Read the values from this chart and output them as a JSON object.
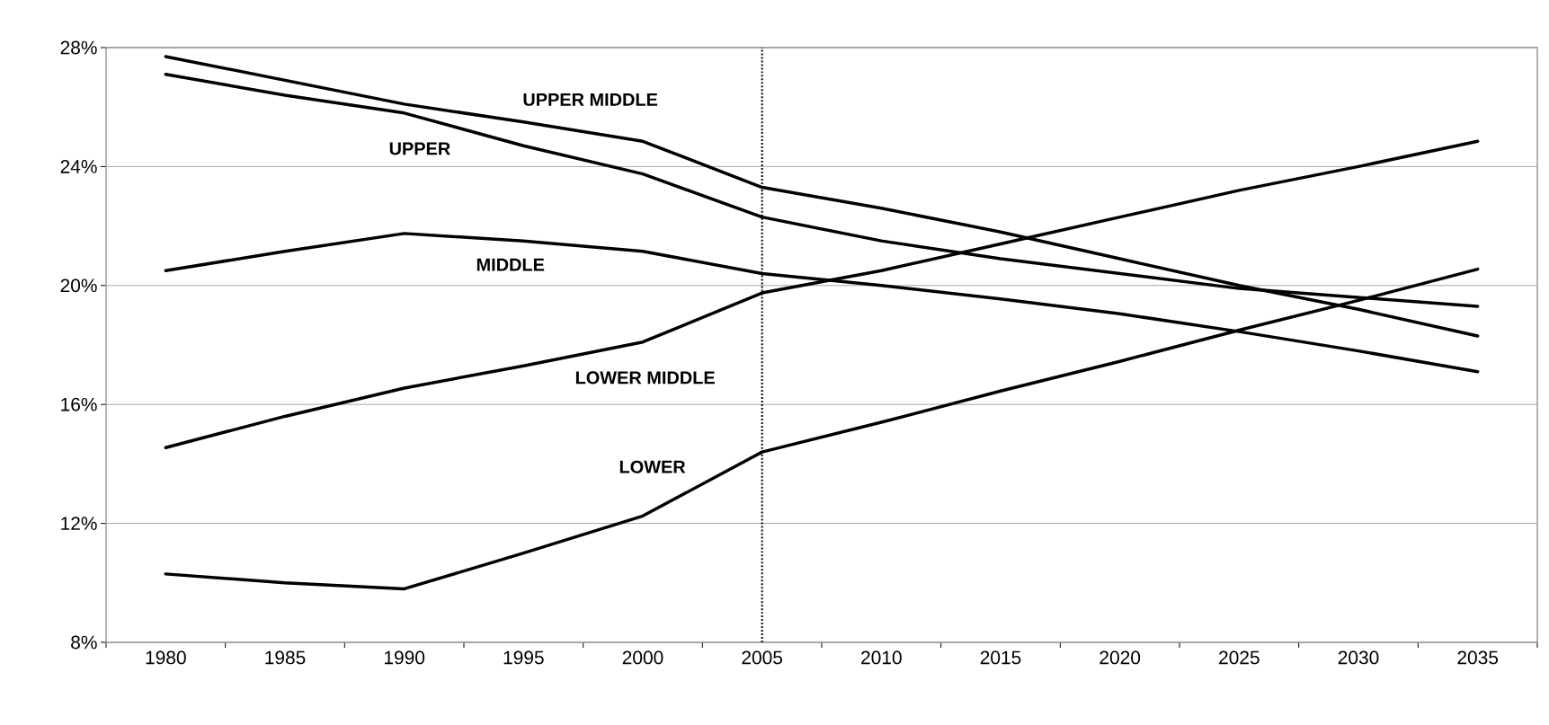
{
  "chart_data": {
    "type": "line",
    "categories": [
      "1980",
      "1985",
      "1990",
      "1995",
      "2000",
      "2005",
      "2010",
      "2015",
      "2020",
      "2025",
      "2030",
      "2035"
    ],
    "series": [
      {
        "name": "UPPER MIDDLE",
        "color": "#000000",
        "values": [
          27.7,
          26.9,
          26.1,
          25.5,
          24.85,
          23.3,
          22.6,
          21.8,
          20.9,
          20.0,
          19.2,
          18.3
        ]
      },
      {
        "name": "UPPER",
        "color": "#000000",
        "values": [
          27.1,
          26.4,
          25.8,
          24.7,
          23.75,
          22.3,
          21.5,
          20.9,
          20.4,
          19.9,
          19.6,
          19.3
        ]
      },
      {
        "name": "MIDDLE",
        "color": "#000000",
        "values": [
          20.5,
          21.15,
          21.75,
          21.5,
          21.15,
          20.4,
          20.0,
          19.55,
          19.05,
          18.45,
          17.8,
          17.1
        ]
      },
      {
        "name": "LOWER MIDDLE",
        "color": "#000000",
        "values": [
          14.55,
          15.6,
          16.55,
          17.3,
          18.1,
          19.75,
          20.5,
          21.4,
          22.3,
          23.2,
          24.0,
          24.85
        ]
      },
      {
        "name": "LOWER",
        "color": "#000000",
        "values": [
          10.3,
          10.0,
          9.8,
          11.0,
          12.25,
          14.4,
          15.4,
          16.45,
          17.45,
          18.5,
          19.5,
          20.55
        ]
      }
    ],
    "ylim": [
      8,
      28
    ],
    "yticks": [
      {
        "value": 8,
        "label": "8%"
      },
      {
        "value": 12,
        "label": "12%"
      },
      {
        "value": 16,
        "label": "16%"
      },
      {
        "value": 20,
        "label": "20%"
      },
      {
        "value": 24,
        "label": "24%"
      },
      {
        "value": 28,
        "label": "28%"
      }
    ],
    "grid": "y",
    "line_style": "solid",
    "marker": "none",
    "ref_lines": [
      {
        "axis": "x",
        "value": "2005",
        "line_style": "dotted",
        "color": "#000000"
      }
    ]
  }
}
